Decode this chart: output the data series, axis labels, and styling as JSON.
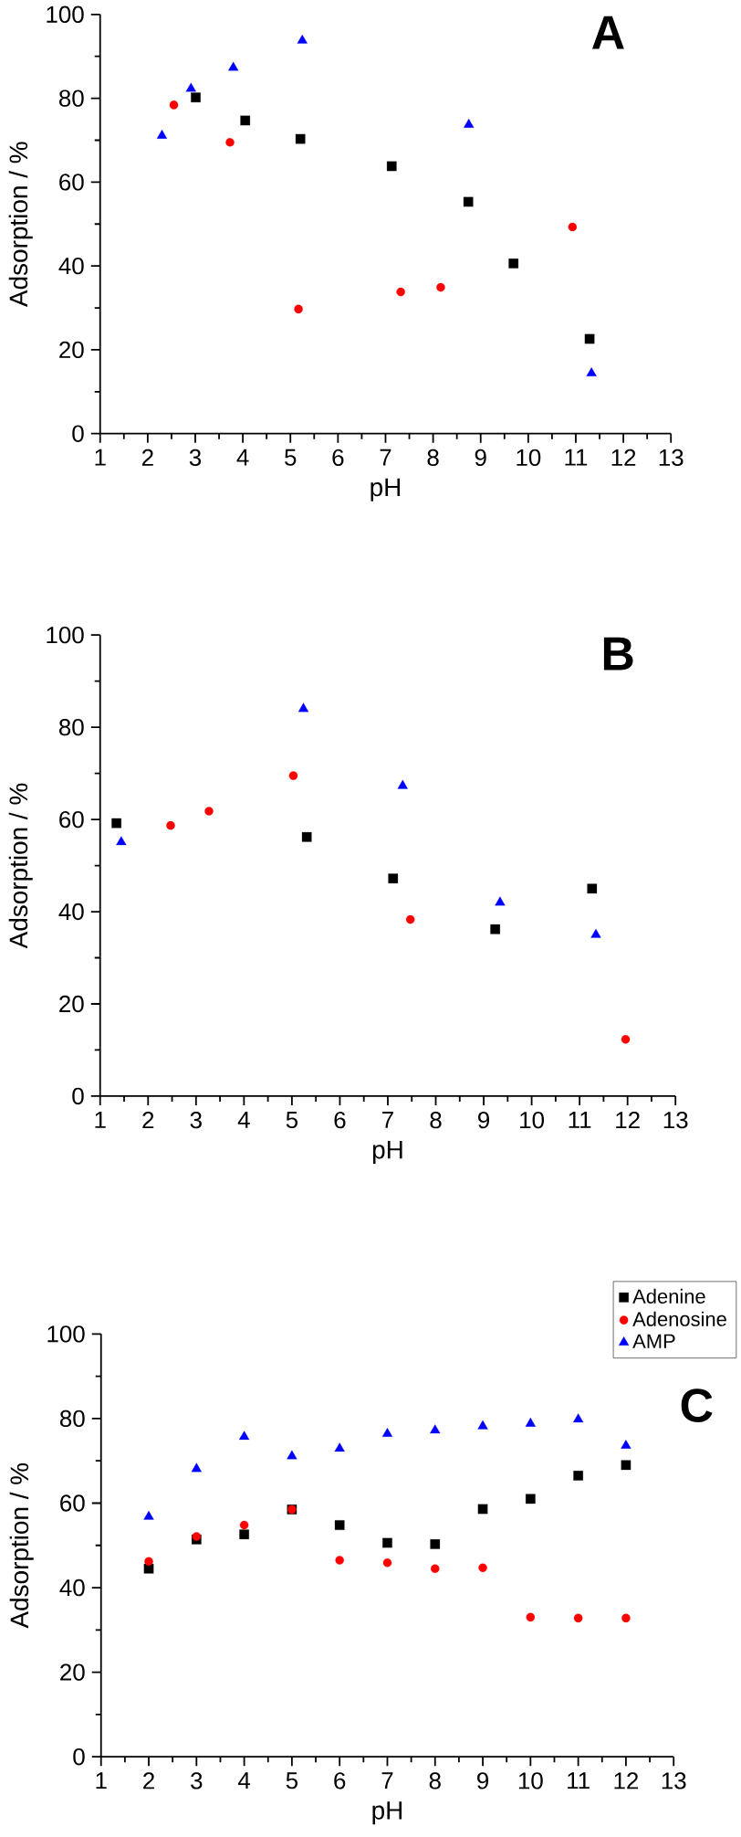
{
  "chart_data": [
    {
      "type": "scatter",
      "title": "A",
      "xlabel": "pH",
      "ylabel": "Adsorption / %",
      "xlim": [
        1,
        13
      ],
      "xticks": [
        1,
        2,
        3,
        4,
        5,
        6,
        7,
        8,
        9,
        10,
        11,
        12,
        13
      ],
      "ylim": [
        0,
        100
      ],
      "yticks": [
        0,
        20,
        40,
        60,
        80,
        100
      ],
      "legend": false,
      "grid": false,
      "series": [
        {
          "color": "#000000",
          "marker": "square",
          "x": [
            3.01,
            4.05,
            5.21,
            7.13,
            8.74,
            9.69,
            11.29
          ],
          "values": [
            80.2,
            74.7,
            70.3,
            63.8,
            55.3,
            40.6,
            22.6
          ]
        },
        {
          "color": "#ff0000",
          "marker": "circle",
          "x": [
            2.55,
            3.73,
            5.17,
            7.32,
            8.16,
            10.93
          ],
          "values": [
            78.4,
            69.5,
            29.7,
            33.8,
            34.9,
            49.3
          ]
        },
        {
          "color": "#0000ff",
          "marker": "triangle",
          "x": [
            2.3,
            2.91,
            3.8,
            5.25,
            8.75,
            11.33
          ],
          "values": [
            71.1,
            82.3,
            87.3,
            93.8,
            73.7,
            14.4
          ]
        }
      ]
    },
    {
      "type": "scatter",
      "title": "B",
      "xlabel": "pH",
      "ylabel": "Adsorption / %",
      "xlim": [
        1,
        13
      ],
      "xticks": [
        1,
        2,
        3,
        4,
        5,
        6,
        7,
        8,
        9,
        10,
        11,
        12,
        13
      ],
      "ylim": [
        0,
        100
      ],
      "yticks": [
        0,
        20,
        40,
        60,
        80,
        100
      ],
      "legend": false,
      "grid": false,
      "series": [
        {
          "color": "#000000",
          "marker": "square",
          "x": [
            1.34,
            5.31,
            7.11,
            9.24,
            11.26
          ],
          "values": [
            59.2,
            56.2,
            47.2,
            36.2,
            45.0
          ]
        },
        {
          "color": "#ff0000",
          "marker": "circle",
          "x": [
            2.47,
            3.27,
            5.03,
            7.47,
            11.96
          ],
          "values": [
            58.7,
            61.8,
            69.5,
            38.3,
            12.3
          ]
        },
        {
          "color": "#0000ff",
          "marker": "triangle",
          "x": [
            1.44,
            5.24,
            7.31,
            9.34,
            11.34
          ],
          "values": [
            55.1,
            84.0,
            67.3,
            42.0,
            35.0
          ]
        }
      ]
    },
    {
      "type": "scatter",
      "title": "C",
      "xlabel": "pH",
      "ylabel": "Adsorption / %",
      "xlim": [
        1,
        13
      ],
      "xticks": [
        1,
        2,
        3,
        4,
        5,
        6,
        7,
        8,
        9,
        10,
        11,
        12,
        13
      ],
      "ylim": [
        0,
        100
      ],
      "yticks": [
        0,
        20,
        40,
        60,
        80,
        100
      ],
      "legend": "top right",
      "grid": false,
      "series": [
        {
          "name": "Adenine",
          "color": "#000000",
          "marker": "square",
          "x": [
            2,
            3,
            4,
            5,
            6,
            7,
            8,
            9,
            10,
            11,
            12
          ],
          "values": [
            44.5,
            51.4,
            52.6,
            58.5,
            54.8,
            50.6,
            50.3,
            58.6,
            61.0,
            66.5,
            69.0
          ]
        },
        {
          "name": "Adenosine",
          "color": "#ff0000",
          "marker": "circle",
          "x": [
            2,
            3,
            4,
            5,
            6,
            7,
            8,
            9,
            10,
            11,
            12
          ],
          "values": [
            46.2,
            52.1,
            54.8,
            58.5,
            46.5,
            45.9,
            44.5,
            44.7,
            33.0,
            32.8,
            32.8
          ]
        },
        {
          "name": "AMP",
          "color": "#0000ff",
          "marker": "triangle",
          "x": [
            2,
            3,
            4,
            5,
            6,
            7,
            8,
            9,
            10,
            11,
            12
          ],
          "values": [
            56.8,
            68.1,
            75.7,
            71.1,
            72.9,
            76.4,
            77.2,
            78.2,
            78.8,
            79.8,
            73.6
          ]
        }
      ]
    }
  ]
}
